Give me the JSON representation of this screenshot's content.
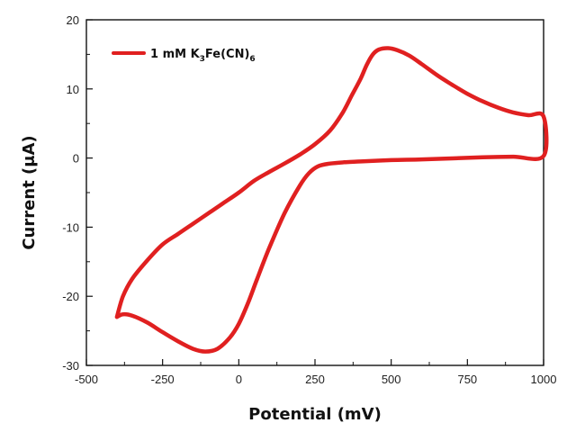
{
  "chart_data": {
    "type": "line",
    "xlabel": "Potential (mV)",
    "ylabel": "Current (μA)",
    "xlim": [
      -500,
      1000
    ],
    "ylim": [
      -30,
      20
    ],
    "xticks": [
      -500,
      -250,
      0,
      250,
      500,
      750,
      1000
    ],
    "yticks": [
      -30,
      -20,
      -10,
      0,
      10,
      20
    ],
    "legend_position": "top-left",
    "legend": {
      "parts": [
        {
          "text": "1 mM K",
          "sub": false
        },
        {
          "text": "3",
          "sub": true
        },
        {
          "text": "Fe(CN)",
          "sub": false
        },
        {
          "text": "6",
          "sub": true
        }
      ]
    },
    "series": [
      {
        "name": "1 mM K3Fe(CN)6",
        "color": "#e02020",
        "points": [
          [
            -400,
            -23
          ],
          [
            -380,
            -22.6
          ],
          [
            -350,
            -22.8
          ],
          [
            -300,
            -23.8
          ],
          [
            -250,
            -25.2
          ],
          [
            -200,
            -26.5
          ],
          [
            -150,
            -27.6
          ],
          [
            -110,
            -28.0
          ],
          [
            -70,
            -27.6
          ],
          [
            -30,
            -26.0
          ],
          [
            0,
            -24.0
          ],
          [
            30,
            -21.0
          ],
          [
            60,
            -17.5
          ],
          [
            100,
            -13.0
          ],
          [
            150,
            -8.0
          ],
          [
            200,
            -4.0
          ],
          [
            230,
            -2.2
          ],
          [
            260,
            -1.2
          ],
          [
            300,
            -0.8
          ],
          [
            350,
            -0.6
          ],
          [
            400,
            -0.5
          ],
          [
            500,
            -0.3
          ],
          [
            600,
            -0.2
          ],
          [
            700,
            -0.05
          ],
          [
            800,
            0.1
          ],
          [
            900,
            0.2
          ],
          [
            1000,
            0.3
          ],
          [
            1000,
            6.0
          ],
          [
            950,
            6.2
          ],
          [
            900,
            6.6
          ],
          [
            850,
            7.3
          ],
          [
            800,
            8.2
          ],
          [
            750,
            9.3
          ],
          [
            700,
            10.6
          ],
          [
            650,
            12.0
          ],
          [
            600,
            13.6
          ],
          [
            560,
            14.8
          ],
          [
            520,
            15.6
          ],
          [
            490,
            15.9
          ],
          [
            460,
            15.7
          ],
          [
            440,
            15.0
          ],
          [
            420,
            13.5
          ],
          [
            400,
            11.5
          ],
          [
            370,
            9.0
          ],
          [
            340,
            6.5
          ],
          [
            300,
            4.0
          ],
          [
            250,
            2.0
          ],
          [
            200,
            0.5
          ],
          [
            150,
            -0.8
          ],
          [
            100,
            -2.0
          ],
          [
            50,
            -3.3
          ],
          [
            0,
            -5.0
          ],
          [
            -50,
            -6.5
          ],
          [
            -100,
            -8.0
          ],
          [
            -150,
            -9.5
          ],
          [
            -200,
            -11.0
          ],
          [
            -250,
            -12.5
          ],
          [
            -300,
            -14.8
          ],
          [
            -350,
            -17.5
          ],
          [
            -380,
            -20.0
          ],
          [
            -400,
            -23.0
          ]
        ]
      }
    ]
  }
}
